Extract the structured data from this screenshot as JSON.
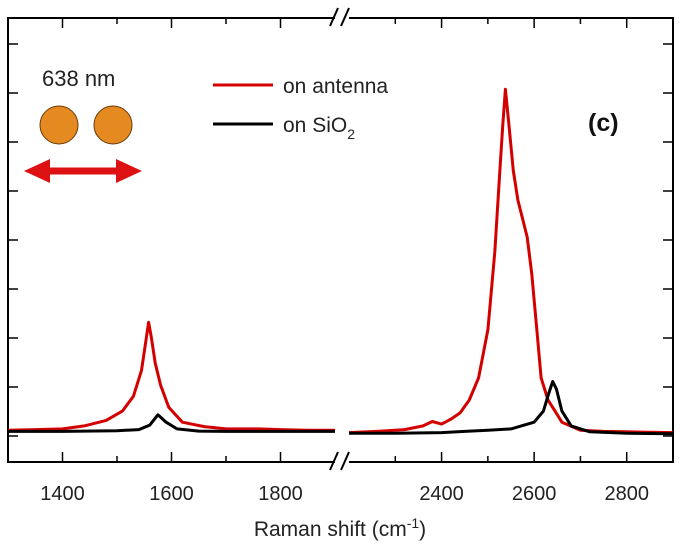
{
  "chart_data": {
    "type": "line",
    "xlabel_main": "Raman shift (cm",
    "xlabel_sup": "-1",
    "xlabel_end": ")",
    "ylabel": "",
    "panel_label": "(c)",
    "annotation": "638 nm",
    "broken_axis": true,
    "segments": [
      {
        "xlim": [
          1300,
          1900
        ],
        "ticks": [
          1400,
          1600,
          1800
        ]
      },
      {
        "xlim": [
          2200,
          2900
        ],
        "ticks": [
          2400,
          2600,
          2800
        ]
      }
    ],
    "ylim": [
      0,
      1
    ],
    "grid": false,
    "legend_position": "top-center",
    "series": [
      {
        "name": "on antenna",
        "name_sub": "",
        "name_tail": "",
        "color": "#d40000",
        "points": [
          [
            1300,
            0.018
          ],
          [
            1350,
            0.02
          ],
          [
            1400,
            0.022
          ],
          [
            1440,
            0.03
          ],
          [
            1480,
            0.045
          ],
          [
            1510,
            0.07
          ],
          [
            1530,
            0.11
          ],
          [
            1545,
            0.18
          ],
          [
            1553,
            0.26
          ],
          [
            1558,
            0.31
          ],
          [
            1563,
            0.27
          ],
          [
            1570,
            0.2
          ],
          [
            1580,
            0.14
          ],
          [
            1595,
            0.08
          ],
          [
            1620,
            0.04
          ],
          [
            1660,
            0.028
          ],
          [
            1700,
            0.022
          ],
          [
            1760,
            0.022
          ],
          [
            1800,
            0.02
          ],
          [
            1850,
            0.018
          ],
          [
            1900,
            0.018
          ],
          null,
          [
            2200,
            0.012
          ],
          [
            2260,
            0.015
          ],
          [
            2320,
            0.02
          ],
          [
            2360,
            0.03
          ],
          [
            2380,
            0.042
          ],
          [
            2400,
            0.035
          ],
          [
            2420,
            0.048
          ],
          [
            2440,
            0.065
          ],
          [
            2460,
            0.1
          ],
          [
            2480,
            0.16
          ],
          [
            2500,
            0.29
          ],
          [
            2515,
            0.5
          ],
          [
            2525,
            0.7
          ],
          [
            2532,
            0.84
          ],
          [
            2538,
            0.94
          ],
          [
            2545,
            0.85
          ],
          [
            2555,
            0.72
          ],
          [
            2565,
            0.64
          ],
          [
            2575,
            0.59
          ],
          [
            2585,
            0.54
          ],
          [
            2595,
            0.44
          ],
          [
            2605,
            0.3
          ],
          [
            2615,
            0.16
          ],
          [
            2630,
            0.1
          ],
          [
            2645,
            0.07
          ],
          [
            2660,
            0.04
          ],
          [
            2700,
            0.018
          ],
          [
            2750,
            0.015
          ],
          [
            2800,
            0.014
          ],
          [
            2850,
            0.013
          ],
          [
            2900,
            0.012
          ]
        ]
      },
      {
        "name": "on SiO",
        "name_sub": "2",
        "name_tail": "",
        "color": "#000000",
        "points": [
          [
            1300,
            0.015
          ],
          [
            1400,
            0.015
          ],
          [
            1500,
            0.017
          ],
          [
            1540,
            0.02
          ],
          [
            1560,
            0.032
          ],
          [
            1575,
            0.06
          ],
          [
            1590,
            0.04
          ],
          [
            1610,
            0.022
          ],
          [
            1650,
            0.016
          ],
          [
            1700,
            0.015
          ],
          [
            1800,
            0.015
          ],
          [
            1900,
            0.015
          ],
          null,
          [
            2200,
            0.01
          ],
          [
            2300,
            0.01
          ],
          [
            2400,
            0.012
          ],
          [
            2450,
            0.015
          ],
          [
            2500,
            0.018
          ],
          [
            2550,
            0.022
          ],
          [
            2600,
            0.04
          ],
          [
            2620,
            0.07
          ],
          [
            2632,
            0.12
          ],
          [
            2640,
            0.15
          ],
          [
            2648,
            0.13
          ],
          [
            2660,
            0.07
          ],
          [
            2680,
            0.03
          ],
          [
            2720,
            0.014
          ],
          [
            2800,
            0.01
          ],
          [
            2900,
            0.009
          ]
        ]
      }
    ]
  },
  "legend_colors": {
    "antenna": "#d40000",
    "sio2": "#000000"
  },
  "decor": {
    "particle_color": "#e48a20",
    "arrow_color": "#dd1111"
  }
}
